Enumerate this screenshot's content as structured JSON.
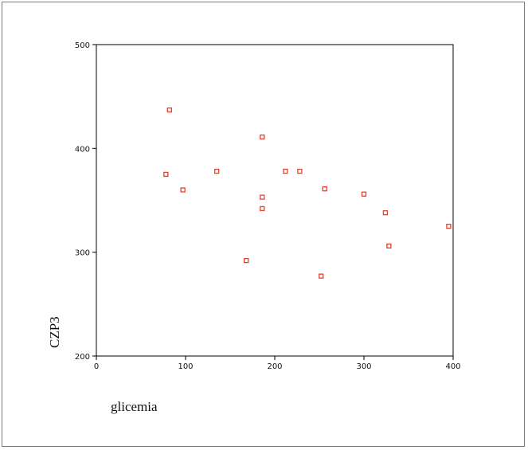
{
  "chart_data": {
    "type": "scatter",
    "title": "",
    "xlabel": "glicemia",
    "ylabel": "CZP3",
    "xlim": [
      0,
      400
    ],
    "ylim": [
      200,
      500
    ],
    "xticks": [
      0,
      100,
      200,
      300,
      400
    ],
    "yticks": [
      200,
      300,
      400,
      500
    ],
    "grid": false,
    "legend": "none",
    "marker": "hollow-square",
    "marker_color": "#e8402a",
    "points": [
      {
        "x": 78,
        "y": 375
      },
      {
        "x": 82,
        "y": 437
      },
      {
        "x": 97,
        "y": 360
      },
      {
        "x": 135,
        "y": 378
      },
      {
        "x": 168,
        "y": 292
      },
      {
        "x": 186,
        "y": 411
      },
      {
        "x": 186,
        "y": 353
      },
      {
        "x": 186,
        "y": 342
      },
      {
        "x": 212,
        "y": 378
      },
      {
        "x": 228,
        "y": 378
      },
      {
        "x": 252,
        "y": 277
      },
      {
        "x": 256,
        "y": 361
      },
      {
        "x": 300,
        "y": 356
      },
      {
        "x": 324,
        "y": 338
      },
      {
        "x": 328,
        "y": 306
      },
      {
        "x": 395,
        "y": 325
      }
    ]
  }
}
